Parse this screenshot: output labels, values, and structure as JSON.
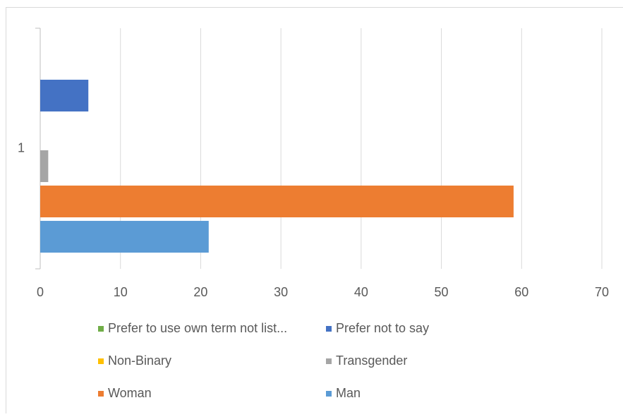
{
  "chart_data": {
    "type": "bar",
    "orientation": "horizontal",
    "categories": [
      "1"
    ],
    "series": [
      {
        "name": "Man",
        "color": "#5b9bd5",
        "values": [
          21
        ]
      },
      {
        "name": "Woman",
        "color": "#ed7d31",
        "values": [
          59
        ]
      },
      {
        "name": "Transgender",
        "color": "#a5a5a5",
        "values": [
          1
        ]
      },
      {
        "name": "Non-Binary",
        "color": "#ffc000",
        "values": [
          0
        ]
      },
      {
        "name": "Prefer not to say",
        "color": "#4472c4",
        "values": [
          6
        ]
      },
      {
        "name": "Prefer to use own term not list...",
        "color": "#70ad47",
        "values": [
          0
        ]
      }
    ],
    "xlim": [
      0,
      70
    ],
    "xticks": [
      0,
      10,
      20,
      30,
      40,
      50,
      60,
      70
    ],
    "grid": true,
    "legend": "bottom"
  }
}
